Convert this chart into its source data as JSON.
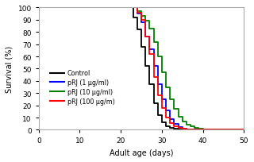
{
  "xlabel": "Adult age (days)",
  "ylabel": "Survival (%)",
  "xlim": [
    0,
    50
  ],
  "ylim": [
    0,
    100
  ],
  "xticks": [
    0,
    10,
    20,
    30,
    40,
    50
  ],
  "yticks": [
    0,
    10,
    20,
    30,
    40,
    50,
    60,
    70,
    80,
    90,
    100
  ],
  "legend_labels": [
    "Control",
    "pRJ (1 μg/ml)",
    "pRJ (10 μg/ml)",
    "pRJ (100 μg/m)"
  ],
  "colors": [
    "black",
    "blue",
    "green",
    "red"
  ],
  "control_x": [
    0,
    22,
    23,
    24,
    25,
    26,
    27,
    28,
    29,
    30,
    31,
    32,
    33,
    34,
    35,
    50
  ],
  "control_y": [
    100,
    100,
    92,
    82,
    68,
    52,
    37,
    22,
    12,
    6,
    3,
    1.5,
    0.8,
    0.3,
    0,
    0
  ],
  "prj1_x": [
    0,
    23,
    24,
    25,
    26,
    27,
    28,
    29,
    30,
    31,
    32,
    33,
    34,
    35,
    36,
    37,
    50
  ],
  "prj1_y": [
    100,
    100,
    95,
    88,
    76,
    66,
    52,
    37,
    25,
    16,
    9,
    5,
    2.5,
    1.2,
    0.5,
    0,
    0
  ],
  "prj10_x": [
    0,
    23,
    24,
    25,
    26,
    27,
    28,
    29,
    30,
    31,
    32,
    33,
    34,
    35,
    36,
    37,
    38,
    39,
    40,
    41,
    42,
    50
  ],
  "prj10_y": [
    100,
    100,
    97,
    93,
    89,
    83,
    72,
    60,
    47,
    35,
    25,
    17,
    11,
    7,
    4.5,
    2.8,
    1.5,
    0.8,
    0.4,
    0.2,
    0,
    0
  ],
  "prj100_x": [
    0,
    23,
    24,
    25,
    26,
    27,
    28,
    29,
    30,
    31,
    32,
    33,
    34,
    35,
    36,
    37,
    38,
    39,
    50
  ],
  "prj100_y": [
    100,
    100,
    96,
    90,
    76,
    62,
    43,
    28,
    18,
    10,
    5.5,
    3,
    1.5,
    0.7,
    0.3,
    0.1,
    0,
    0,
    0
  ]
}
